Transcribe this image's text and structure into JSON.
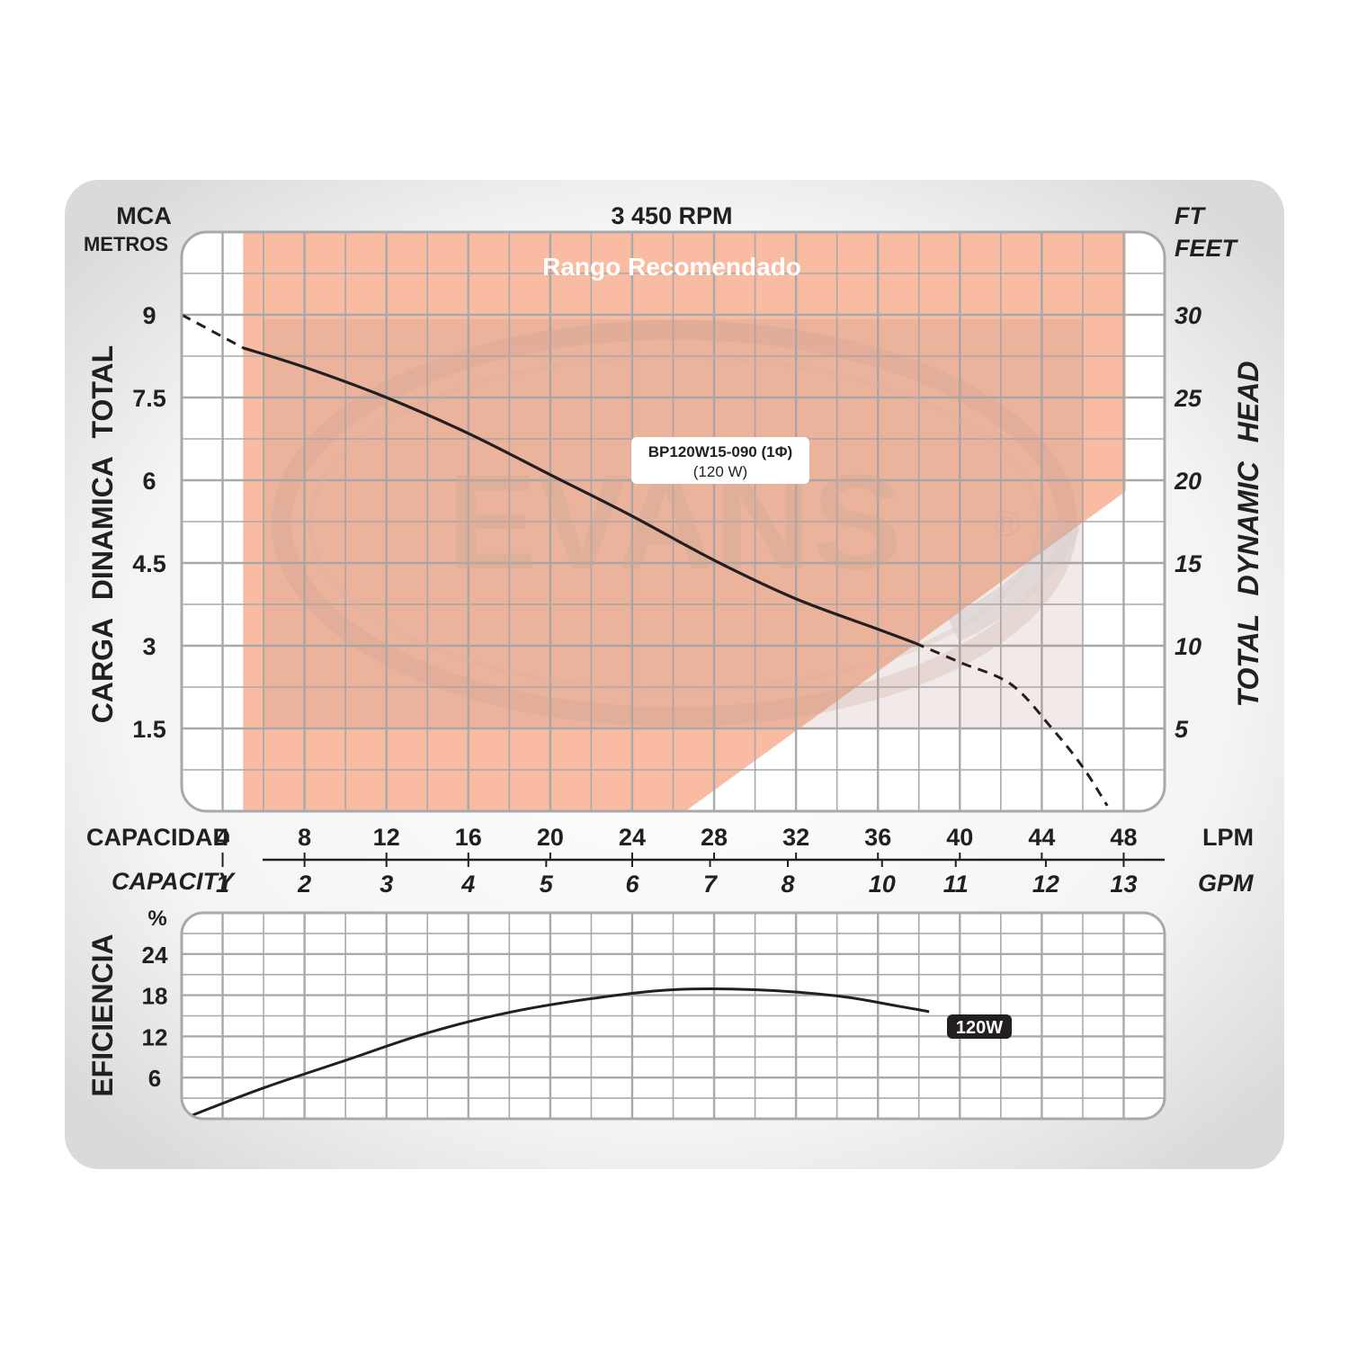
{
  "header": {
    "rpm": "3 450 RPM",
    "left_unit_top": "MCA",
    "left_unit_bottom": "METROS",
    "right_unit_top": "FT",
    "right_unit_bottom": "FEET"
  },
  "watermark": {
    "text": "EVANS",
    "mark": "®"
  },
  "colors": {
    "recommended_range": "#f9bba1",
    "grid": "#a7a9ac",
    "curve": "#231f20",
    "panel": "#e6e7e8",
    "text": "#231f20"
  },
  "chart_data": [
    {
      "type": "line",
      "title": "3 450 RPM",
      "xlabel": "CAPACIDAD / CAPACITY",
      "x_unit_primary": "LPM",
      "x_unit_secondary": "GPM",
      "ylabel_left": "CARGA DINAMICA TOTAL",
      "ylabel_right": "TOTAL DYNAMIC HEAD",
      "y_unit_left": "MCA / METROS",
      "y_unit_right": "FT / FEET",
      "xlim": [
        2,
        50
      ],
      "ylim": [
        0,
        10.5
      ],
      "grid": true,
      "x_ticks": [
        4,
        8,
        12,
        16,
        20,
        24,
        28,
        32,
        36,
        40,
        44,
        48
      ],
      "x_ticks_secondary": [
        {
          "label": "1",
          "x": 4
        },
        {
          "label": "2",
          "x": 8
        },
        {
          "label": "3",
          "x": 12
        },
        {
          "label": "4",
          "x": 16
        },
        {
          "label": "5",
          "x": 19.8
        },
        {
          "label": "6",
          "x": 24
        },
        {
          "label": "7",
          "x": 27.8
        },
        {
          "label": "8",
          "x": 31.6
        },
        {
          "label": "10",
          "x": 36.2
        },
        {
          "label": "11",
          "x": 39.8
        },
        {
          "label": "12",
          "x": 44.2
        },
        {
          "label": "13",
          "x": 48
        }
      ],
      "y_ticks_left": [
        "1.5",
        "3",
        "4.5",
        "6",
        "7.5",
        "9"
      ],
      "y_tick_values_left": [
        1.5,
        3,
        4.5,
        6,
        7.5,
        9
      ],
      "y_ticks_right": [
        {
          "label": "5",
          "y": 1.5
        },
        {
          "label": "10",
          "y": 3
        },
        {
          "label": "15",
          "y": 4.5
        },
        {
          "label": "20",
          "y": 6
        },
        {
          "label": "25",
          "y": 7.5
        },
        {
          "label": "30",
          "y": 9
        }
      ],
      "recommended_range": {
        "label": "Rango Recomendado",
        "polygon": [
          [
            5,
            10.5
          ],
          [
            48.1,
            10.5
          ],
          [
            48.1,
            5.8
          ],
          [
            26.6,
            0
          ],
          [
            5,
            0
          ]
        ]
      },
      "series": [
        {
          "name": "BP120W15-090 (1Φ)",
          "sublabel": "(120 W)",
          "solid": [
            [
              5,
              8.4
            ],
            [
              8,
              8.05
            ],
            [
              12,
              7.5
            ],
            [
              16,
              6.85
            ],
            [
              20,
              6.1
            ],
            [
              24,
              5.35
            ],
            [
              28,
              4.55
            ],
            [
              32,
              3.85
            ],
            [
              36,
              3.3
            ],
            [
              37.8,
              3.05
            ]
          ],
          "dashed_left": [
            [
              2,
              9.0
            ],
            [
              3.5,
              8.7
            ],
            [
              5,
              8.4
            ]
          ],
          "dashed_right": [
            [
              37.8,
              3.05
            ],
            [
              40,
              2.7
            ],
            [
              42.5,
              2.3
            ],
            [
              44.5,
              1.5
            ],
            [
              46,
              0.8
            ],
            [
              47.2,
              0.1
            ]
          ]
        }
      ]
    },
    {
      "type": "line",
      "ylabel": "EFICIENCIA",
      "y_unit": "%",
      "xlim": [
        2,
        50
      ],
      "ylim": [
        0,
        30
      ],
      "grid": true,
      "y_ticks": [
        "6",
        "12",
        "18",
        "24"
      ],
      "y_tick_values": [
        6,
        12,
        18,
        24
      ],
      "series": [
        {
          "name": "120W",
          "points": [
            [
              2.5,
              0.5
            ],
            [
              6,
              4.5
            ],
            [
              10,
              8.5
            ],
            [
              14,
              12.5
            ],
            [
              18,
              15.5
            ],
            [
              22,
              17.5
            ],
            [
              26,
              18.8
            ],
            [
              30,
              18.8
            ],
            [
              34,
              17.9
            ],
            [
              37,
              16.4
            ],
            [
              38.5,
              15.6
            ]
          ]
        }
      ]
    }
  ]
}
